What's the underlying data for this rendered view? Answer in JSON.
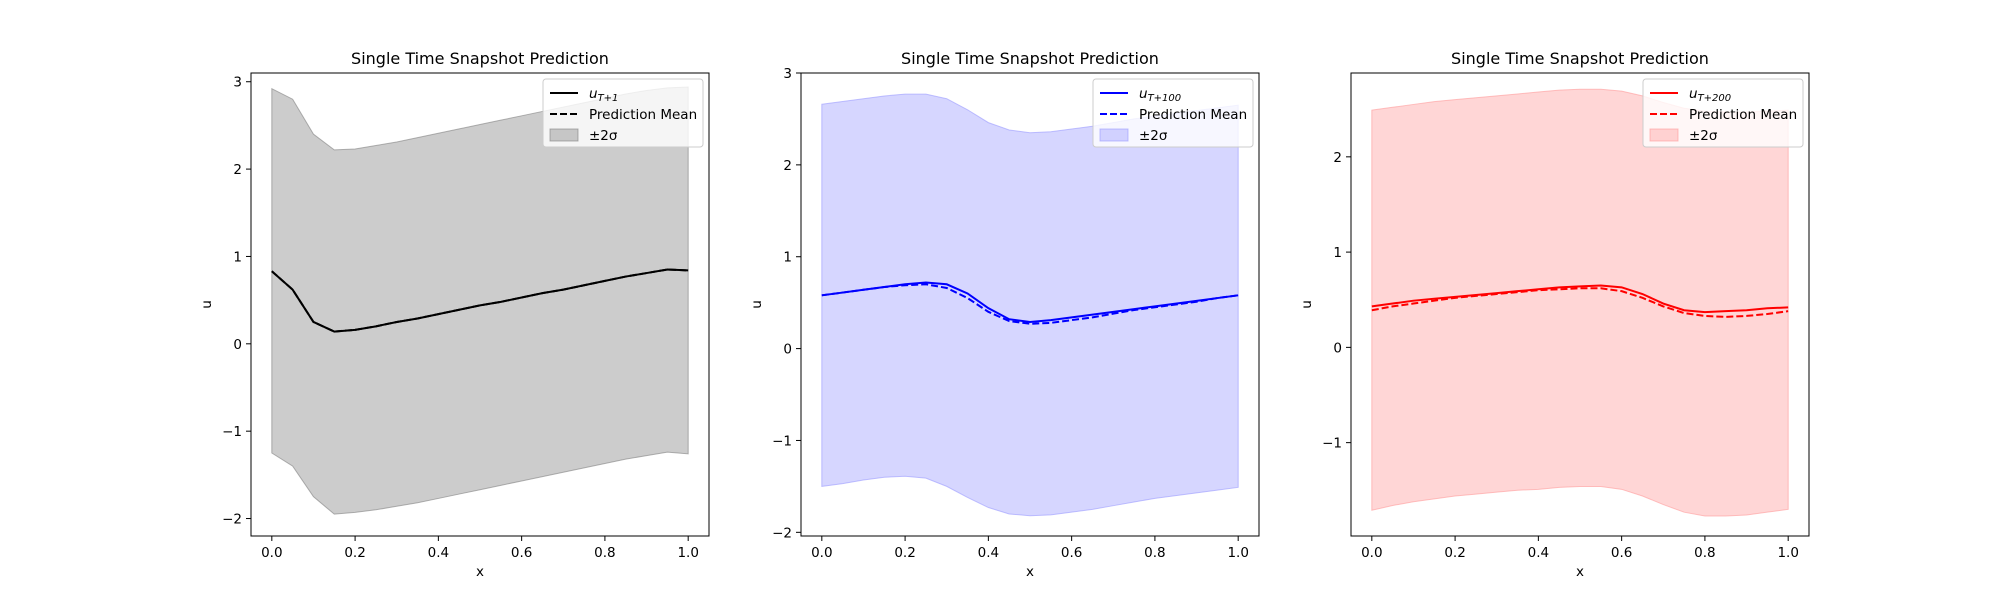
{
  "chart_data": [
    {
      "type": "line",
      "title": "Single Time Snapshot Prediction",
      "xlabel": "x",
      "ylabel": "u",
      "xlim": [
        -0.05,
        1.05
      ],
      "ylim": [
        -2.2,
        3.1
      ],
      "xticks": [
        0.0,
        0.2,
        0.4,
        0.6,
        0.8,
        1.0
      ],
      "xtick_labels": [
        "0.0",
        "0.2",
        "0.4",
        "0.6",
        "0.8",
        "1.0"
      ],
      "yticks": [
        -2,
        -1,
        0,
        1,
        2,
        3
      ],
      "ytick_labels": [
        "−2",
        "−1",
        "0",
        "1",
        "2",
        "3"
      ],
      "color": "#000000",
      "band_color": "#808080",
      "legend_position": "top-right",
      "legend": {
        "truth_base": "u",
        "truth_sub": "T+1",
        "mean": "Prediction Mean",
        "band": "±2σ"
      },
      "x": [
        0.0,
        0.05,
        0.1,
        0.15,
        0.2,
        0.25,
        0.3,
        0.35,
        0.4,
        0.45,
        0.5,
        0.55,
        0.6,
        0.65,
        0.7,
        0.75,
        0.8,
        0.85,
        0.9,
        0.95,
        1.0
      ],
      "series": [
        {
          "role": "truth",
          "values": [
            0.83,
            0.62,
            0.25,
            0.14,
            0.16,
            0.2,
            0.25,
            0.29,
            0.34,
            0.39,
            0.44,
            0.48,
            0.53,
            0.58,
            0.62,
            0.67,
            0.72,
            0.77,
            0.81,
            0.85,
            0.84
          ]
        },
        {
          "role": "mean",
          "values": [
            0.83,
            0.62,
            0.25,
            0.14,
            0.16,
            0.2,
            0.25,
            0.29,
            0.34,
            0.39,
            0.44,
            0.48,
            0.53,
            0.58,
            0.62,
            0.67,
            0.72,
            0.77,
            0.81,
            0.85,
            0.84
          ]
        },
        {
          "role": "upper",
          "values": [
            2.92,
            2.8,
            2.4,
            2.22,
            2.23,
            2.27,
            2.31,
            2.36,
            2.41,
            2.46,
            2.51,
            2.56,
            2.61,
            2.66,
            2.71,
            2.76,
            2.81,
            2.86,
            2.9,
            2.93,
            2.94
          ]
        },
        {
          "role": "lower",
          "values": [
            -1.25,
            -1.4,
            -1.75,
            -1.95,
            -1.93,
            -1.9,
            -1.86,
            -1.82,
            -1.77,
            -1.72,
            -1.67,
            -1.62,
            -1.57,
            -1.52,
            -1.47,
            -1.42,
            -1.37,
            -1.32,
            -1.28,
            -1.24,
            -1.26
          ]
        }
      ]
    },
    {
      "type": "line",
      "title": "Single Time Snapshot Prediction",
      "xlabel": "x",
      "ylabel": "u",
      "xlim": [
        -0.05,
        1.05
      ],
      "ylim": [
        -2.04,
        3.0
      ],
      "xticks": [
        0.0,
        0.2,
        0.4,
        0.6,
        0.8,
        1.0
      ],
      "xtick_labels": [
        "0.0",
        "0.2",
        "0.4",
        "0.6",
        "0.8",
        "1.0"
      ],
      "yticks": [
        -2,
        -1,
        0,
        1,
        2,
        3
      ],
      "ytick_labels": [
        "−2",
        "−1",
        "0",
        "1",
        "2",
        "3"
      ],
      "color": "#0000ff",
      "band_color": "#9999ff",
      "legend_position": "top-right",
      "legend": {
        "truth_base": "u",
        "truth_sub": "T+100",
        "mean": "Prediction Mean",
        "band": "±2σ"
      },
      "x": [
        0.0,
        0.05,
        0.1,
        0.15,
        0.2,
        0.25,
        0.3,
        0.35,
        0.4,
        0.45,
        0.5,
        0.55,
        0.6,
        0.65,
        0.7,
        0.75,
        0.8,
        0.85,
        0.9,
        0.95,
        1.0
      ],
      "series": [
        {
          "role": "truth",
          "values": [
            0.58,
            0.61,
            0.64,
            0.67,
            0.7,
            0.72,
            0.7,
            0.6,
            0.44,
            0.32,
            0.29,
            0.31,
            0.34,
            0.37,
            0.4,
            0.43,
            0.46,
            0.49,
            0.52,
            0.55,
            0.58
          ]
        },
        {
          "role": "mean",
          "values": [
            0.58,
            0.61,
            0.64,
            0.67,
            0.69,
            0.7,
            0.66,
            0.55,
            0.4,
            0.3,
            0.27,
            0.28,
            0.31,
            0.34,
            0.38,
            0.42,
            0.45,
            0.48,
            0.51,
            0.55,
            0.58
          ]
        },
        {
          "role": "upper",
          "values": [
            2.66,
            2.69,
            2.72,
            2.75,
            2.77,
            2.77,
            2.72,
            2.6,
            2.46,
            2.38,
            2.35,
            2.36,
            2.39,
            2.42,
            2.46,
            2.5,
            2.53,
            2.56,
            2.59,
            2.62,
            2.65
          ]
        },
        {
          "role": "lower",
          "values": [
            -1.5,
            -1.47,
            -1.43,
            -1.4,
            -1.39,
            -1.41,
            -1.5,
            -1.62,
            -1.73,
            -1.8,
            -1.82,
            -1.81,
            -1.78,
            -1.75,
            -1.71,
            -1.67,
            -1.63,
            -1.6,
            -1.57,
            -1.54,
            -1.51
          ]
        }
      ]
    },
    {
      "type": "line",
      "title": "Single Time Snapshot Prediction",
      "xlabel": "x",
      "ylabel": "u",
      "xlim": [
        -0.05,
        1.05
      ],
      "ylim": [
        -1.98,
        2.88
      ],
      "xticks": [
        0.0,
        0.2,
        0.4,
        0.6,
        0.8,
        1.0
      ],
      "xtick_labels": [
        "0.0",
        "0.2",
        "0.4",
        "0.6",
        "0.8",
        "1.0"
      ],
      "yticks": [
        -1,
        0,
        1,
        2
      ],
      "ytick_labels": [
        "−1",
        "0",
        "1",
        "2"
      ],
      "color": "#ff0000",
      "band_color": "#ff9999",
      "legend_position": "top-right",
      "legend": {
        "truth_base": "u",
        "truth_sub": "T+200",
        "mean": "Prediction Mean",
        "band": "±2σ"
      },
      "x": [
        0.0,
        0.05,
        0.1,
        0.15,
        0.2,
        0.25,
        0.3,
        0.35,
        0.4,
        0.45,
        0.5,
        0.55,
        0.6,
        0.65,
        0.7,
        0.75,
        0.8,
        0.85,
        0.9,
        0.95,
        1.0
      ],
      "series": [
        {
          "role": "truth",
          "values": [
            0.43,
            0.46,
            0.49,
            0.51,
            0.53,
            0.55,
            0.57,
            0.59,
            0.61,
            0.63,
            0.64,
            0.65,
            0.63,
            0.56,
            0.46,
            0.39,
            0.37,
            0.38,
            0.39,
            0.41,
            0.42
          ]
        },
        {
          "role": "mean",
          "values": [
            0.39,
            0.43,
            0.46,
            0.49,
            0.52,
            0.54,
            0.56,
            0.58,
            0.6,
            0.61,
            0.62,
            0.62,
            0.59,
            0.52,
            0.43,
            0.36,
            0.33,
            0.32,
            0.33,
            0.35,
            0.38
          ]
        },
        {
          "role": "upper",
          "values": [
            2.49,
            2.52,
            2.55,
            2.58,
            2.6,
            2.62,
            2.64,
            2.66,
            2.68,
            2.7,
            2.71,
            2.71,
            2.69,
            2.64,
            2.57,
            2.51,
            2.48,
            2.47,
            2.47,
            2.48,
            2.49
          ]
        },
        {
          "role": "lower",
          "values": [
            -1.71,
            -1.66,
            -1.62,
            -1.59,
            -1.56,
            -1.54,
            -1.52,
            -1.5,
            -1.49,
            -1.47,
            -1.46,
            -1.46,
            -1.49,
            -1.56,
            -1.65,
            -1.73,
            -1.77,
            -1.77,
            -1.76,
            -1.73,
            -1.7
          ]
        }
      ]
    }
  ]
}
